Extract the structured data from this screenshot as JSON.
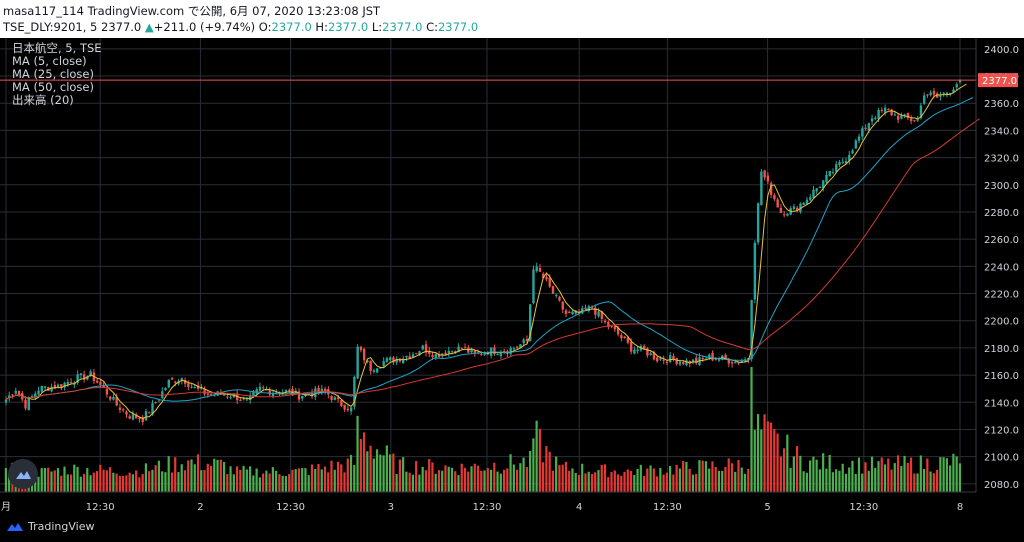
{
  "header": {
    "line1": "masa117_114 TradingView.com で公開, 6月 07, 2020 13:23:08 JST",
    "symbol": "TSE_DLY:9201, 5",
    "last": "2377.0",
    "change": "+211.0 (+9.74%)",
    "o_label": "O:",
    "o_val": "2377.0",
    "h_label": "H:",
    "h_val": "2377.0",
    "l_label": "L:",
    "l_val": "2377.0",
    "c_label": "C:",
    "c_val": "2377.0"
  },
  "legend": {
    "title": "日本航空, 5, TSE",
    "ma5": "MA (5, close)",
    "ma25": "MA (25, close)",
    "ma50": "MA (50, close)",
    "volume": "出来高 (20)"
  },
  "branding": {
    "logo_text": "TradingView"
  },
  "price_tag": "2377.0",
  "colors": {
    "up": "#26a69a",
    "down": "#ef5350",
    "candle_up": "#26a69a",
    "candle_down": "#ef5350",
    "vol_up": "#4caf50",
    "vol_down": "#e53935",
    "ma5": "#e8c33a",
    "ma25": "#1fa3c7",
    "ma50": "#d63a2f",
    "grid": "#2a2e39",
    "background": "#000000",
    "price_line": "#ef5350"
  },
  "chart_data": {
    "type": "candlestick",
    "title": "日本航空, 5, TSE",
    "interval": "5 min",
    "y_axis": {
      "ticks": [
        "2400.0",
        "2380.0",
        "2360.0",
        "2340.0",
        "2320.0",
        "2300.0",
        "2280.0",
        "2260.0",
        "2240.0",
        "2220.0",
        "2200.0",
        "2180.0",
        "2160.0",
        "2140.0",
        "2120.0",
        "2100.0",
        "2080.0"
      ],
      "ylim": [
        2074,
        2408
      ]
    },
    "x_axis": {
      "ticks": [
        "月",
        "12:30",
        "2",
        "12:30",
        "3",
        "12:30",
        "4",
        "12:30",
        "5",
        "12:30",
        "8"
      ]
    },
    "grid": true,
    "legend_position": "top-left",
    "last_price": 2377.0,
    "price_anchors": [
      [
        0,
        2142
      ],
      [
        3,
        2150
      ],
      [
        6,
        2138
      ],
      [
        10,
        2150
      ],
      [
        16,
        2152
      ],
      [
        22,
        2158
      ],
      [
        26,
        2160
      ],
      [
        30,
        2150
      ],
      [
        34,
        2138
      ],
      [
        38,
        2130
      ],
      [
        42,
        2128
      ],
      [
        46,
        2140
      ],
      [
        50,
        2155
      ],
      [
        54,
        2158
      ],
      [
        58,
        2150
      ],
      [
        62,
        2146
      ],
      [
        67,
        2146
      ],
      [
        70,
        2145
      ],
      [
        74,
        2140
      ],
      [
        78,
        2150
      ],
      [
        82,
        2148
      ],
      [
        86,
        2148
      ],
      [
        90,
        2145
      ],
      [
        94,
        2147
      ],
      [
        98,
        2148
      ],
      [
        102,
        2140
      ],
      [
        106,
        2135
      ],
      [
        108,
        2180
      ],
      [
        112,
        2165
      ],
      [
        116,
        2170
      ],
      [
        120,
        2172
      ],
      [
        124,
        2175
      ],
      [
        128,
        2180
      ],
      [
        132,
        2175
      ],
      [
        136,
        2178
      ],
      [
        140,
        2180
      ],
      [
        144,
        2175
      ],
      [
        148,
        2178
      ],
      [
        152,
        2178
      ],
      [
        156,
        2180
      ],
      [
        160,
        2185
      ],
      [
        162,
        2240
      ],
      [
        164,
        2235
      ],
      [
        166,
        2228
      ],
      [
        168,
        2220
      ],
      [
        172,
        2205
      ],
      [
        176,
        2205
      ],
      [
        180,
        2210
      ],
      [
        184,
        2198
      ],
      [
        188,
        2190
      ],
      [
        192,
        2180
      ],
      [
        196,
        2178
      ],
      [
        200,
        2172
      ],
      [
        204,
        2172
      ],
      [
        208,
        2170
      ],
      [
        212,
        2170
      ],
      [
        216,
        2173
      ],
      [
        220,
        2172
      ],
      [
        224,
        2170
      ],
      [
        228,
        2172
      ],
      [
        229,
        2218
      ],
      [
        230,
        2260
      ],
      [
        232,
        2310
      ],
      [
        234,
        2300
      ],
      [
        238,
        2280
      ],
      [
        242,
        2282
      ],
      [
        246,
        2290
      ],
      [
        250,
        2300
      ],
      [
        254,
        2310
      ],
      [
        258,
        2320
      ],
      [
        262,
        2335
      ],
      [
        266,
        2350
      ],
      [
        270,
        2355
      ],
      [
        274,
        2350
      ],
      [
        278,
        2348
      ],
      [
        280,
        2348
      ],
      [
        282,
        2368
      ],
      [
        286,
        2364
      ],
      [
        290,
        2370
      ],
      [
        293,
        2377
      ]
    ],
    "volume_anchors": [
      [
        0,
        2097
      ],
      [
        5,
        2088
      ],
      [
        20,
        2092
      ],
      [
        40,
        2090
      ],
      [
        55,
        2098
      ],
      [
        67,
        2095
      ],
      [
        70,
        2090
      ],
      [
        90,
        2090
      ],
      [
        107,
        2097
      ],
      [
        108,
        2122
      ],
      [
        120,
        2095
      ],
      [
        140,
        2093
      ],
      [
        161,
        2098
      ],
      [
        162,
        2118
      ],
      [
        170,
        2093
      ],
      [
        190,
        2090
      ],
      [
        228,
        2096
      ],
      [
        229,
        2150
      ],
      [
        230,
        2125
      ],
      [
        245,
        2098
      ],
      [
        265,
        2095
      ],
      [
        280,
        2096
      ],
      [
        292,
        2098
      ],
      [
        293,
        2102
      ]
    ],
    "bars": 294,
    "series": [
      {
        "name": "MA (5, close)"
      },
      {
        "name": "MA (25, close)"
      },
      {
        "name": "MA (50, close)"
      },
      {
        "name": "出来高 (20)"
      }
    ]
  }
}
